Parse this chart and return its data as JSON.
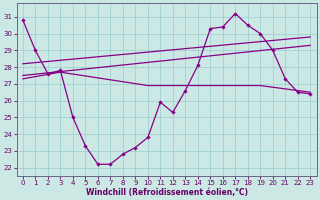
{
  "xlabel": "Windchill (Refroidissement éolien,°C)",
  "background_color": "#cce8e4",
  "line_color": "#880088",
  "grid_color": "#99cccc",
  "ylim": [
    21.5,
    31.8
  ],
  "xlim": [
    -0.5,
    23.5
  ],
  "yticks": [
    22,
    23,
    24,
    25,
    26,
    27,
    28,
    29,
    30,
    31
  ],
  "xticks": [
    0,
    1,
    2,
    3,
    4,
    5,
    6,
    7,
    8,
    9,
    10,
    11,
    12,
    13,
    14,
    15,
    16,
    17,
    18,
    19,
    20,
    21,
    22,
    23
  ],
  "series1_x": [
    0,
    1,
    2,
    3,
    4,
    5,
    6,
    7,
    8,
    9,
    10,
    11,
    12,
    13,
    14,
    15,
    16,
    17,
    18,
    19,
    20,
    21,
    22,
    23
  ],
  "series1_y": [
    30.8,
    29.0,
    27.6,
    27.8,
    25.0,
    23.3,
    22.2,
    22.2,
    22.8,
    23.2,
    23.8,
    25.9,
    25.3,
    26.6,
    28.1,
    30.3,
    30.4,
    31.2,
    30.5,
    30.0,
    29.0,
    27.3,
    26.5,
    26.4
  ],
  "series2_x": [
    0,
    3,
    10,
    14,
    19,
    23
  ],
  "series2_y": [
    27.3,
    27.7,
    26.9,
    26.9,
    26.9,
    26.5
  ],
  "series3_x": [
    0,
    23
  ],
  "series3_y": [
    27.5,
    29.3
  ],
  "series4_x": [
    0,
    23
  ],
  "series4_y": [
    28.2,
    29.8
  ],
  "tick_color": "#660066",
  "tick_fontsize": 5,
  "xlabel_fontsize": 5.5
}
